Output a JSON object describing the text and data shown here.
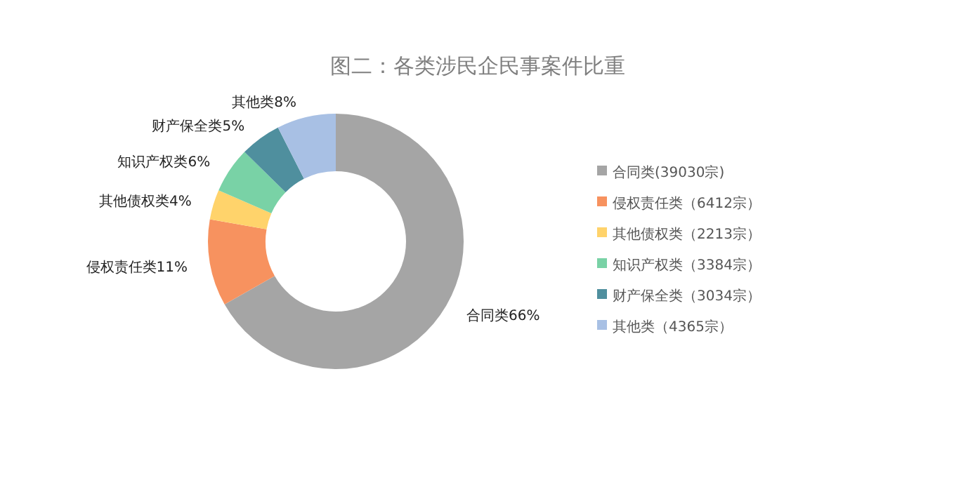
{
  "chart_data": {
    "type": "donut",
    "title": "图二：各类涉民企民事案件比重",
    "categories": [
      "合同类(39030宗)",
      "侵权责任类（6412宗）",
      "其他债权类（2213宗）",
      "知识产权类（3384宗）",
      "财产保全类（3034宗）",
      "其他类（4365宗）"
    ],
    "values": [
      39030,
      6412,
      2213,
      3384,
      3034,
      4365
    ],
    "colors": [
      "#a5a5a5",
      "#f7925f",
      "#ffd36b",
      "#79d2a6",
      "#4f8f9e",
      "#a8c0e4"
    ],
    "value_labels": [
      "合同类66%",
      "侵权责任类11%",
      "其他债权类4%",
      "知识产权类6%",
      "财产保全类5%",
      "其他类8%"
    ],
    "legend": "right"
  }
}
